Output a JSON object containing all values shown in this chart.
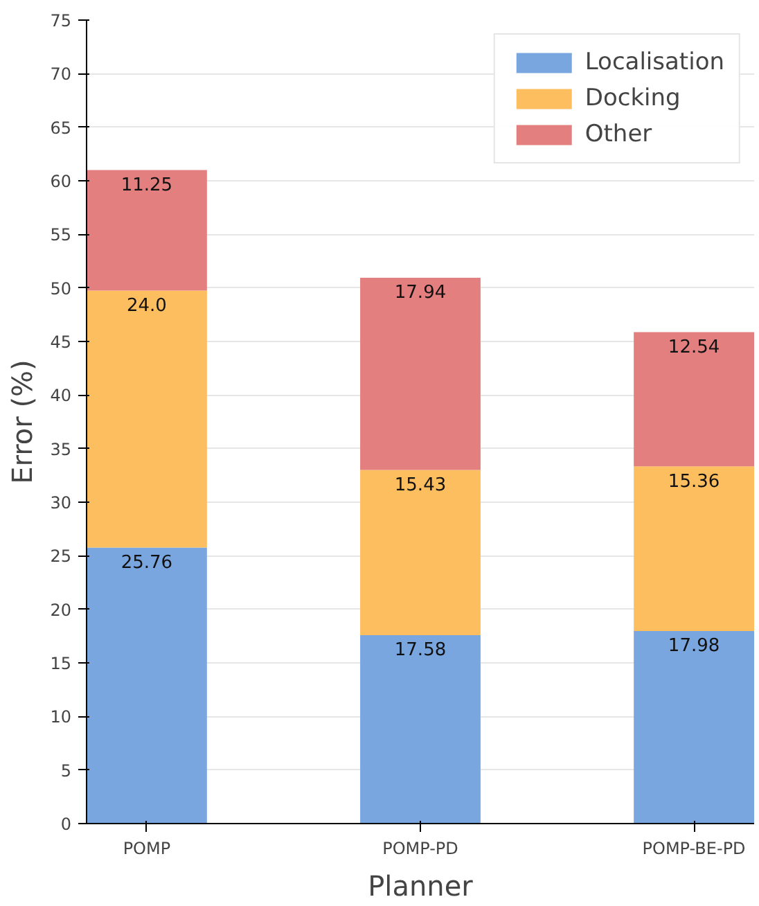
{
  "chart_data": {
    "type": "bar",
    "stacked": true,
    "xlabel": "Planner",
    "ylabel": "Error (%)",
    "categories": [
      "POMP",
      "POMP-PD",
      "POMP-BE-PD"
    ],
    "series": [
      {
        "name": "Localisation",
        "color": "#7aa6df",
        "values": [
          25.76,
          17.58,
          17.98
        ],
        "value_labels": [
          "25.76",
          "17.58",
          "17.98"
        ]
      },
      {
        "name": "Docking",
        "color": "#fdbe5f",
        "values": [
          24.0,
          15.43,
          15.36
        ],
        "value_labels": [
          "24.0",
          "15.43",
          "15.36"
        ]
      },
      {
        "name": "Other",
        "color": "#e47f7f",
        "values": [
          11.25,
          17.94,
          12.54
        ],
        "value_labels": [
          "11.25",
          "17.94",
          "12.54"
        ]
      }
    ],
    "ylim": [
      0,
      75
    ],
    "yticks": [
      0,
      5,
      10,
      15,
      20,
      25,
      30,
      35,
      40,
      45,
      50,
      55,
      60,
      65,
      70,
      75
    ],
    "grid": "y",
    "legend": "top right"
  }
}
